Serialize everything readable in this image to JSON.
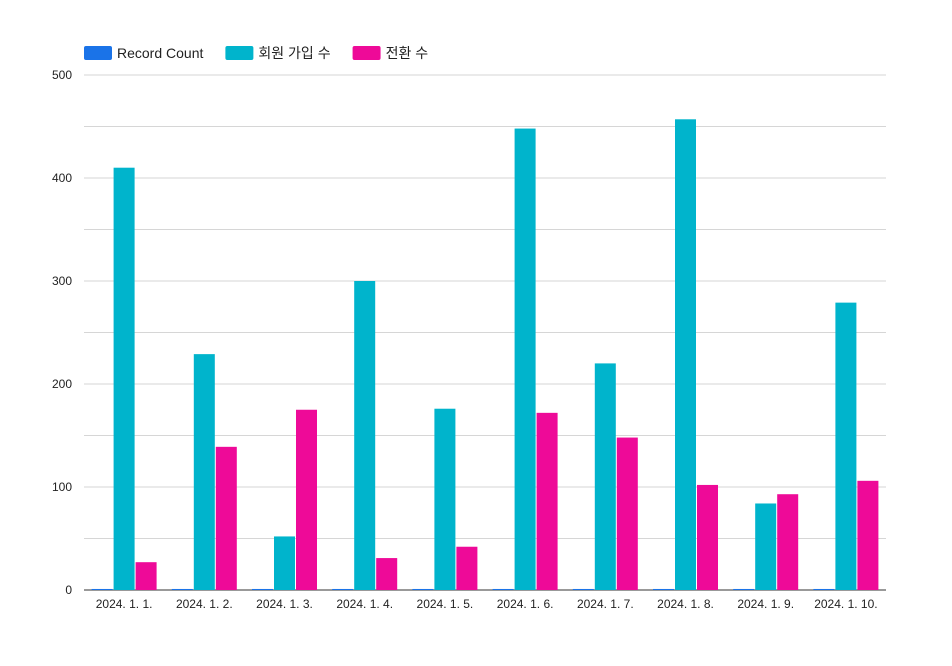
{
  "chart_data": {
    "type": "bar",
    "title": "",
    "xlabel": "",
    "ylabel": "",
    "ylim": [
      0,
      500
    ],
    "yticks": [
      0,
      100,
      200,
      300,
      400,
      500
    ],
    "grid": true,
    "legend_position": "top-left",
    "categories": [
      "2024. 1. 1.",
      "2024. 1. 2.",
      "2024. 1. 3.",
      "2024. 1. 4.",
      "2024. 1. 5.",
      "2024. 1. 6.",
      "2024. 1. 7.",
      "2024. 1. 8.",
      "2024. 1. 9.",
      "2024. 1. 10."
    ],
    "series": [
      {
        "name": "Record Count",
        "color": "#1a73e8",
        "values": [
          1,
          1,
          1,
          1,
          1,
          1,
          1,
          1,
          1,
          1
        ]
      },
      {
        "name": "회원 가입 수",
        "color": "#00b4cc",
        "values": [
          410,
          229,
          52,
          300,
          176,
          448,
          220,
          457,
          84,
          279
        ]
      },
      {
        "name": "전환 수",
        "color": "#ee0a98",
        "values": [
          27,
          139,
          175,
          31,
          42,
          172,
          148,
          102,
          93,
          106
        ]
      }
    ]
  }
}
